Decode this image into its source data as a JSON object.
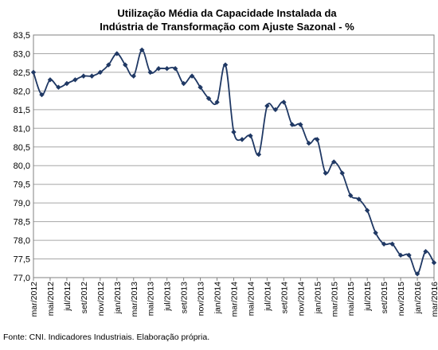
{
  "chart_data": {
    "type": "line",
    "title_lines": [
      "Utilização Média da Capacidade Instalada da",
      "Indústria de Transformação com Ajuste Sazonal - %"
    ],
    "xlabel": "",
    "ylabel": "",
    "ylim": [
      77.0,
      83.5
    ],
    "y_ticks": [
      "77,0",
      "77,5",
      "78,0",
      "78,5",
      "79,0",
      "79,5",
      "80,0",
      "80,5",
      "81,0",
      "81,5",
      "82,0",
      "82,5",
      "83,0",
      "83,5"
    ],
    "grid": true,
    "legend": "none",
    "line_color": "#1f3864",
    "x_tick_labels": [
      "mar/2012",
      "mai/2012",
      "jul/2012",
      "set/2012",
      "nov/2012",
      "jan/2013",
      "mar/2013",
      "mai/2013",
      "jul/2013",
      "set/2013",
      "nov/2013",
      "jan/2014",
      "mar/2014",
      "mai/2014",
      "jul/2014",
      "set/2014",
      "nov/2014",
      "jan/2015",
      "mar/2015",
      "mai/2015",
      "jul/2015",
      "set/2015",
      "nov/2015",
      "jan/2016",
      "mar/2016"
    ],
    "x": [
      "mar/2012",
      "abr/2012",
      "mai/2012",
      "jun/2012",
      "jul/2012",
      "ago/2012",
      "set/2012",
      "out/2012",
      "nov/2012",
      "dez/2012",
      "jan/2013",
      "fev/2013",
      "mar/2013",
      "abr/2013",
      "mai/2013",
      "jun/2013",
      "jul/2013",
      "ago/2013",
      "set/2013",
      "out/2013",
      "nov/2013",
      "dez/2013",
      "jan/2014",
      "fev/2014",
      "mar/2014",
      "abr/2014",
      "mai/2014",
      "jun/2014",
      "jul/2014",
      "ago/2014",
      "set/2014",
      "out/2014",
      "nov/2014",
      "dez/2014",
      "jan/2015",
      "fev/2015",
      "mar/2015",
      "abr/2015",
      "mai/2015",
      "jun/2015",
      "jul/2015",
      "ago/2015",
      "set/2015",
      "out/2015",
      "nov/2015",
      "dez/2015",
      "jan/2016",
      "fev/2016",
      "mar/2016"
    ],
    "values": [
      82.5,
      81.9,
      82.3,
      82.1,
      82.2,
      82.3,
      82.4,
      82.4,
      82.5,
      82.7,
      83.0,
      82.7,
      82.4,
      83.1,
      82.5,
      82.6,
      82.6,
      82.6,
      82.2,
      82.4,
      82.1,
      81.8,
      81.7,
      82.7,
      80.9,
      80.7,
      80.8,
      80.3,
      81.6,
      81.5,
      81.7,
      81.1,
      81.1,
      80.6,
      80.7,
      79.8,
      80.1,
      79.8,
      79.2,
      79.1,
      78.8,
      78.2,
      77.9,
      77.9,
      77.6,
      77.6,
      77.1,
      77.7,
      77.4
    ]
  },
  "source_note": "Fonte: CNI. Indicadores Industriais. Elaboração própria."
}
